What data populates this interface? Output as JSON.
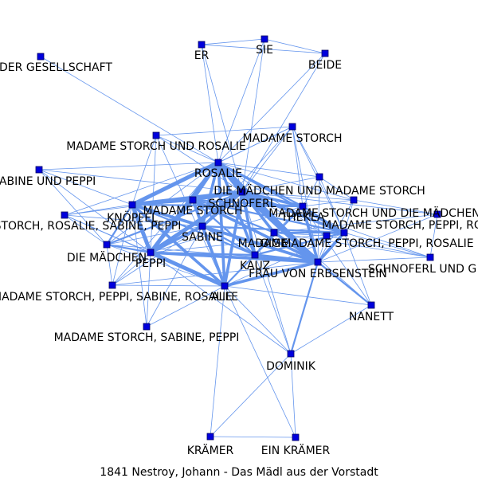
{
  "caption": "1841 Nestroy, Johann - Das Mädl aus der Vorstadt",
  "colors": {
    "edge": "#6495ED",
    "node": "#0000DD",
    "background": "#FFFFFF"
  },
  "nodes": [
    {
      "id": "ER",
      "label": "ER"
    },
    {
      "id": "SIE",
      "label": "SIE"
    },
    {
      "id": "BEIDE",
      "label": "BEIDE"
    },
    {
      "id": "GES",
      "label": "DER GESELLSCHAFT"
    },
    {
      "id": "MSR",
      "label": "MADAME STORCH UND ROSALIE"
    },
    {
      "id": "MS",
      "label": "MADAME STORCH"
    },
    {
      "id": "ROSALIE",
      "label": "ROSALIE"
    },
    {
      "id": "SUP",
      "label": "SABINE UND PEPPI"
    },
    {
      "id": "DMUMS",
      "label": "DIE MÄDCHEN UND MADAME STORCH"
    },
    {
      "id": "SCHNOFERL",
      "label": "SCHNOFERL"
    },
    {
      "id": "MSUDM",
      "label": "MADAME STORCH UND DIE MÄDCHEN"
    },
    {
      "id": "MSRSP",
      "label": "STORCH, ROSALIE, SABINE, PEPPI"
    },
    {
      "id": "KNOPFEL",
      "label": "KNÖPFEL"
    },
    {
      "id": "MS2",
      "label": "MADAME STORCH"
    },
    {
      "id": "THEKLA",
      "label": "THEKLA"
    },
    {
      "id": "MSPR_R",
      "label": "MADAME STORCH, PEPPI, RO"
    },
    {
      "id": "SABINE",
      "label": "SABINE"
    },
    {
      "id": "MADAME",
      "label": "MADAME"
    },
    {
      "id": "GIGL",
      "label": "GIGL"
    },
    {
      "id": "MSPR",
      "label": "MADAME STORCH, PEPPI, ROSALIE"
    },
    {
      "id": "DM",
      "label": "DIE MÄDCHEN"
    },
    {
      "id": "PEPPI",
      "label": "PEPPI"
    },
    {
      "id": "KAUZ",
      "label": "KAUZ"
    },
    {
      "id": "FVE",
      "label": "FRAU VON ERBSENSTEIN"
    },
    {
      "id": "SUG",
      "label": "SCHNOFERL UND G"
    },
    {
      "id": "MSPSR",
      "label": "MADAME STORCH, PEPPI, SABINE, ROSALIE"
    },
    {
      "id": "ALLE",
      "label": "ALLE"
    },
    {
      "id": "NANETT",
      "label": "NANETT"
    },
    {
      "id": "MSSP",
      "label": "MADAME STORCH, SABINE, PEPPI"
    },
    {
      "id": "DOMINIK",
      "label": "DOMINIK"
    },
    {
      "id": "KRAMER",
      "label": "KRÄMER"
    },
    {
      "id": "EINKRAMER",
      "label": "EIN KRÄMER"
    }
  ],
  "edges": [
    [
      "ER",
      "SIE",
      1
    ],
    [
      "ER",
      "BEIDE",
      1
    ],
    [
      "SIE",
      "BEIDE",
      1
    ],
    [
      "ER",
      "ROSALIE",
      1
    ],
    [
      "SIE",
      "ROSALIE",
      1
    ],
    [
      "BEIDE",
      "ROSALIE",
      1
    ],
    [
      "ER",
      "SCHNOFERL",
      1
    ],
    [
      "SIE",
      "SCHNOFERL",
      1
    ],
    [
      "BEIDE",
      "SCHNOFERL",
      1
    ],
    [
      "GES",
      "ROSALIE",
      1
    ],
    [
      "MSR",
      "ROSALIE",
      1
    ],
    [
      "MSR",
      "KNOPFEL",
      1
    ],
    [
      "MSR",
      "SCHNOFERL",
      1
    ],
    [
      "MSR",
      "ALLE",
      1
    ],
    [
      "MSR",
      "PEPPI",
      1
    ],
    [
      "MS",
      "ROSALIE",
      1
    ],
    [
      "MS",
      "SCHNOFERL",
      1
    ],
    [
      "MS",
      "SABINE",
      1
    ],
    [
      "MS",
      "KNOPFEL",
      1
    ],
    [
      "MS",
      "FVE",
      1
    ],
    [
      "SUP",
      "KNOPFEL",
      1
    ],
    [
      "SUP",
      "ROSALIE",
      1
    ],
    [
      "SUP",
      "SCHNOFERL",
      1
    ],
    [
      "SUP",
      "PEPPI",
      1
    ],
    [
      "MSRSP",
      "KNOPFEL",
      1
    ],
    [
      "MSRSP",
      "ROSALIE",
      1
    ],
    [
      "MSRSP",
      "SCHNOFERL",
      1
    ],
    [
      "MSRSP",
      "SABINE",
      1
    ],
    [
      "MSRSP",
      "PEPPI",
      1
    ],
    [
      "MSRSP",
      "DM",
      1
    ],
    [
      "DM",
      "KNOPFEL",
      2
    ],
    [
      "DM",
      "PEPPI",
      2
    ],
    [
      "DM",
      "ROSALIE",
      1
    ],
    [
      "DM",
      "SCHNOFERL",
      2
    ],
    [
      "DM",
      "ALLE",
      1
    ],
    [
      "DM",
      "FVE",
      1
    ],
    [
      "MSPSR",
      "PEPPI",
      1
    ],
    [
      "MSPSR",
      "ALLE",
      1
    ],
    [
      "MSPSR",
      "ROSALIE",
      1
    ],
    [
      "MSPSR",
      "KNOPFEL",
      1
    ],
    [
      "MSPSR",
      "SABINE",
      1
    ],
    [
      "MSPSR",
      "DM",
      1
    ],
    [
      "MSPSR",
      "FVE",
      1
    ],
    [
      "MSSP",
      "ALLE",
      1
    ],
    [
      "MSSP",
      "PEPPI",
      1
    ],
    [
      "MSSP",
      "SABINE",
      1
    ],
    [
      "MSSP",
      "KNOPFEL",
      1
    ],
    [
      "ROSALIE",
      "SCHNOFERL",
      5
    ],
    [
      "ROSALIE",
      "KNOPFEL",
      4
    ],
    [
      "ROSALIE",
      "SABINE",
      3
    ],
    [
      "ROSALIE",
      "PEPPI",
      4
    ],
    [
      "ROSALIE",
      "ALLE",
      3
    ],
    [
      "ROSALIE",
      "MS2",
      3
    ],
    [
      "ROSALIE",
      "FVE",
      4
    ],
    [
      "ROSALIE",
      "KAUZ",
      3
    ],
    [
      "ROSALIE",
      "MADAME",
      2
    ],
    [
      "ROSALIE",
      "THEKLA",
      2
    ],
    [
      "ROSALIE",
      "GIGL",
      2
    ],
    [
      "ROSALIE",
      "DMUMS",
      1
    ],
    [
      "ROSALIE",
      "MSUDM",
      1
    ],
    [
      "ROSALIE",
      "MSPR",
      1
    ],
    [
      "SCHNOFERL",
      "KNOPFEL",
      4
    ],
    [
      "SCHNOFERL",
      "SABINE",
      3
    ],
    [
      "SCHNOFERL",
      "PEPPI",
      4
    ],
    [
      "SCHNOFERL",
      "ALLE",
      3
    ],
    [
      "SCHNOFERL",
      "FVE",
      5
    ],
    [
      "SCHNOFERL",
      "KAUZ",
      3
    ],
    [
      "SCHNOFERL",
      "THEKLA",
      3
    ],
    [
      "SCHNOFERL",
      "GIGL",
      3
    ],
    [
      "SCHNOFERL",
      "MADAME",
      3
    ],
    [
      "SCHNOFERL",
      "MS2",
      3
    ],
    [
      "SCHNOFERL",
      "DMUMS",
      1
    ],
    [
      "SCHNOFERL",
      "MSUDM",
      1
    ],
    [
      "SCHNOFERL",
      "MSPR",
      1
    ],
    [
      "SCHNOFERL",
      "MSPR_R",
      1
    ],
    [
      "SCHNOFERL",
      "SUG",
      1
    ],
    [
      "SCHNOFERL",
      "NANETT",
      1
    ],
    [
      "SCHNOFERL",
      "DOMINIK",
      1
    ],
    [
      "KNOPFEL",
      "SABINE",
      3
    ],
    [
      "KNOPFEL",
      "PEPPI",
      4
    ],
    [
      "KNOPFEL",
      "ALLE",
      3
    ],
    [
      "KNOPFEL",
      "MS2",
      3
    ],
    [
      "KNOPFEL",
      "FVE",
      3
    ],
    [
      "KNOPFEL",
      "KAUZ",
      2
    ],
    [
      "KNOPFEL",
      "THEKLA",
      2
    ],
    [
      "MS2",
      "SABINE",
      3
    ],
    [
      "MS2",
      "PEPPI",
      3
    ],
    [
      "MS2",
      "ALLE",
      3
    ],
    [
      "MS2",
      "FVE",
      3
    ],
    [
      "MS2",
      "KAUZ",
      2
    ],
    [
      "MS2",
      "THEKLA",
      2
    ],
    [
      "MS2",
      "GIGL",
      2
    ],
    [
      "MS2",
      "MADAME",
      2
    ],
    [
      "SABINE",
      "PEPPI",
      3
    ],
    [
      "SABINE",
      "ALLE",
      3
    ],
    [
      "SABINE",
      "FVE",
      3
    ],
    [
      "SABINE",
      "KAUZ",
      2
    ],
    [
      "SABINE",
      "GIGL",
      2
    ],
    [
      "PEPPI",
      "ALLE",
      4
    ],
    [
      "PEPPI",
      "FVE",
      3
    ],
    [
      "PEPPI",
      "KAUZ",
      2
    ],
    [
      "PEPPI",
      "THEKLA",
      1
    ],
    [
      "PEPPI",
      "GIGL",
      1
    ],
    [
      "ALLE",
      "FVE",
      3
    ],
    [
      "ALLE",
      "KAUZ",
      2
    ],
    [
      "ALLE",
      "DOMINIK",
      1
    ],
    [
      "ALLE",
      "KRAMER",
      1
    ],
    [
      "ALLE",
      "EINKRAMER",
      1
    ],
    [
      "ALLE",
      "NANETT",
      1
    ],
    [
      "ALLE",
      "THEKLA",
      1
    ],
    [
      "ALLE",
      "GIGL",
      1
    ],
    [
      "FVE",
      "KAUZ",
      3
    ],
    [
      "FVE",
      "THEKLA",
      3
    ],
    [
      "FVE",
      "GIGL",
      3
    ],
    [
      "FVE",
      "MADAME",
      3
    ],
    [
      "FVE",
      "DOMINIK",
      2
    ],
    [
      "FVE",
      "NANETT",
      2
    ],
    [
      "FVE",
      "SUG",
      1
    ],
    [
      "FVE",
      "MSPR_R",
      1
    ],
    [
      "FVE",
      "DMUMS",
      1
    ],
    [
      "FVE",
      "MSUDM",
      1
    ],
    [
      "FVE",
      "MSPR",
      1
    ],
    [
      "KAUZ",
      "GIGL",
      2
    ],
    [
      "KAUZ",
      "THEKLA",
      2
    ],
    [
      "KAUZ",
      "MADAME",
      2
    ],
    [
      "KAUZ",
      "DOMINIK",
      1
    ],
    [
      "THEKLA",
      "GIGL",
      2
    ],
    [
      "THEKLA",
      "MADAME",
      1
    ],
    [
      "THEKLA",
      "DMUMS",
      1
    ],
    [
      "THEKLA",
      "MSUDM",
      1
    ],
    [
      "THEKLA",
      "NANETT",
      1
    ],
    [
      "GIGL",
      "MADAME",
      2
    ],
    [
      "GIGL",
      "DMUMS",
      1
    ],
    [
      "GIGL",
      "MSUDM",
      1
    ],
    [
      "GIGL",
      "SUG",
      1
    ],
    [
      "GIGL",
      "NANETT",
      1
    ],
    [
      "MADAME",
      "MSPR",
      1
    ],
    [
      "MADAME",
      "MSPR_R",
      1
    ],
    [
      "MADAME",
      "SUG",
      1
    ],
    [
      "DMUMS",
      "MSUDM",
      1
    ],
    [
      "DMUMS",
      "MS",
      1
    ],
    [
      "MSUDM",
      "MSPR_R",
      1
    ],
    [
      "MSPR_R",
      "SUG",
      1
    ],
    [
      "MSPR",
      "SUG",
      1
    ],
    [
      "MS",
      "MSR",
      1
    ],
    [
      "MS",
      "GIGL",
      1
    ],
    [
      "MS",
      "THEKLA",
      1
    ],
    [
      "DOMINIK",
      "KRAMER",
      1
    ],
    [
      "DOMINIK",
      "EINKRAMER",
      1
    ],
    [
      "KRAMER",
      "EINKRAMER",
      1
    ],
    [
      "DOMINIK",
      "NANETT",
      1
    ],
    [
      "SUP",
      "DM",
      1
    ],
    [
      "MSRSP",
      "ALLE",
      1
    ],
    [
      "DM",
      "SABINE",
      1
    ],
    [
      "PEPPI",
      "DOMINIK",
      1
    ]
  ]
}
